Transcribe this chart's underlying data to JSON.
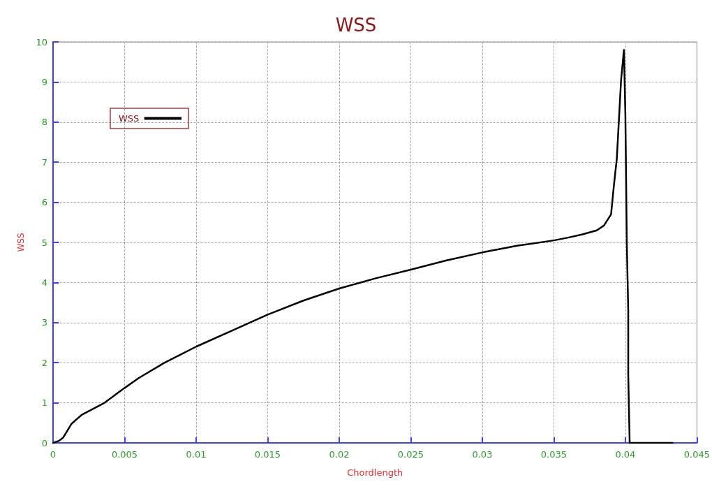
{
  "chart_data": {
    "type": "line",
    "title": "WSS",
    "xlabel": "Chordlength",
    "ylabel": "WSS",
    "xlim": [
      0,
      0.045
    ],
    "xticks": [
      0,
      0.005,
      0.01,
      0.015,
      0.02,
      0.025,
      0.03,
      0.035,
      0.04,
      0.045
    ],
    "ylim": [
      0,
      10
    ],
    "yticks": [
      0,
      1,
      2,
      3,
      4,
      5,
      6,
      7,
      8,
      9,
      10
    ],
    "grid": true,
    "legend": "top left",
    "marker": "none",
    "line_style": "solid",
    "series": [
      {
        "name": "WSS",
        "color": "#000000",
        "x": [
          0,
          0.0004,
          0.0007,
          0.0013,
          0.002,
          0.0036,
          0.005,
          0.006,
          0.0078,
          0.01,
          0.0125,
          0.015,
          0.0175,
          0.02,
          0.0225,
          0.025,
          0.0275,
          0.03,
          0.0325,
          0.035,
          0.036,
          0.037,
          0.038,
          0.0385,
          0.039,
          0.0392,
          0.0394,
          0.0397,
          0.0399,
          0.04,
          0.0401,
          0.0402,
          0.0402,
          0.0403,
          0.0433
        ],
        "values": [
          0,
          0.05,
          0.13,
          0.48,
          0.7,
          1.0,
          1.37,
          1.62,
          2.0,
          2.4,
          2.8,
          3.2,
          3.55,
          3.85,
          4.1,
          4.32,
          4.55,
          4.75,
          4.92,
          5.05,
          5.12,
          5.2,
          5.3,
          5.42,
          5.7,
          6.43,
          7.08,
          9.05,
          9.8,
          8.17,
          4.98,
          3.3,
          1.7,
          0,
          0
        ]
      }
    ]
  }
}
